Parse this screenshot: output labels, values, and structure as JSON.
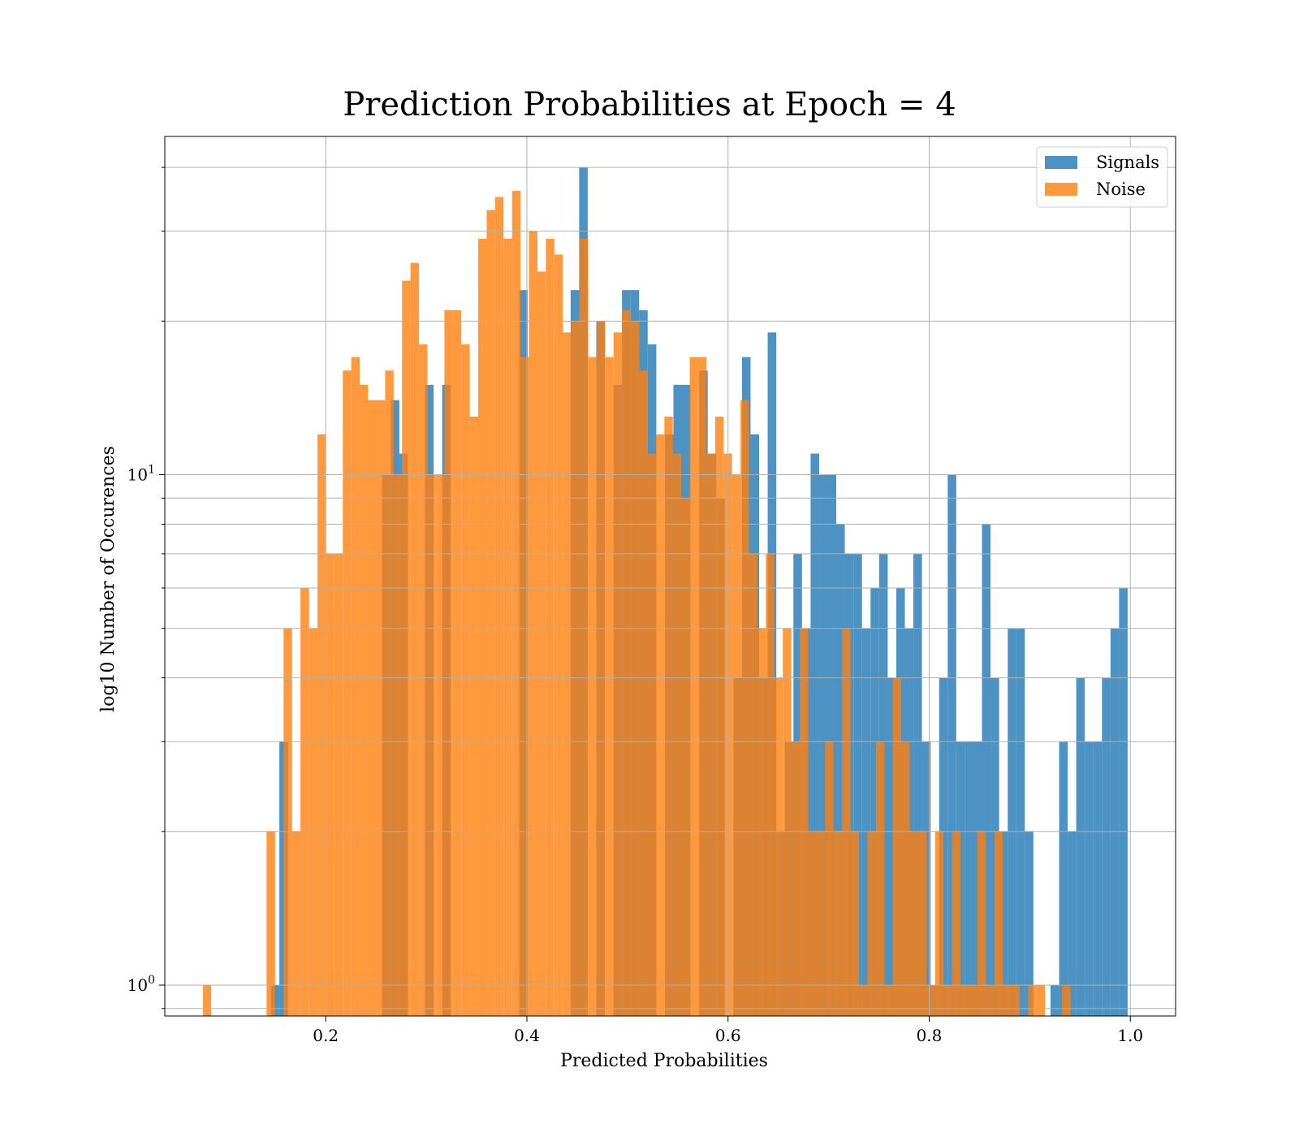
{
  "chart_data": {
    "type": "bar",
    "title": "Prediction Probabilities at Epoch = 4",
    "xlabel": "Predicted Probabilities",
    "ylabel": "log10 Number of Occurences",
    "xlim": [
      0.04,
      1.045
    ],
    "ylim": [
      0.87,
      46
    ],
    "yscale": "log",
    "grid": true,
    "legend_position": "top-right",
    "x_ticks": [
      0.2,
      0.4,
      0.6,
      0.8,
      1.0
    ],
    "x_tick_labels": [
      "0.2",
      "0.4",
      "0.6",
      "0.8",
      "1.0"
    ],
    "y_major_ticks": [
      {
        "value": 1,
        "base": "10",
        "exp": "0"
      },
      {
        "value": 10,
        "base": "10",
        "exp": "1"
      }
    ],
    "y_minor_ticks": [
      0.9,
      2,
      3,
      4,
      5,
      6,
      7,
      8,
      9,
      20,
      30,
      40
    ],
    "series": [
      {
        "name": "Signals",
        "color": "#1f77b4",
        "opacity": 0.8,
        "bins": [
          [
            0.1455,
            0.1539,
            1
          ],
          [
            0.1539,
            0.1625,
            3
          ],
          [
            0.2561,
            0.2647,
            10
          ],
          [
            0.2647,
            0.2732,
            14
          ],
          [
            0.2732,
            0.2817,
            11
          ],
          [
            0.2987,
            0.3073,
            15
          ],
          [
            0.3158,
            0.3243,
            15
          ],
          [
            0.3924,
            0.4009,
            23
          ],
          [
            0.4435,
            0.452,
            23
          ],
          [
            0.452,
            0.4605,
            40
          ],
          [
            0.469,
            0.4776,
            20
          ],
          [
            0.4861,
            0.4946,
            15
          ],
          [
            0.4946,
            0.5031,
            23
          ],
          [
            0.5031,
            0.5116,
            23
          ],
          [
            0.5116,
            0.5201,
            21
          ],
          [
            0.5201,
            0.5287,
            18
          ],
          [
            0.5372,
            0.5457,
            12
          ],
          [
            0.5457,
            0.5542,
            15
          ],
          [
            0.5542,
            0.5627,
            15
          ],
          [
            0.5713,
            0.5798,
            16
          ],
          [
            0.5798,
            0.5883,
            11
          ],
          [
            0.5883,
            0.5968,
            9
          ],
          [
            0.6054,
            0.6139,
            4
          ],
          [
            0.6139,
            0.6224,
            17
          ],
          [
            0.6224,
            0.6309,
            12
          ],
          [
            0.6309,
            0.6394,
            4
          ],
          [
            0.6394,
            0.648,
            19
          ],
          [
            0.648,
            0.6565,
            2
          ],
          [
            0.6565,
            0.665,
            3
          ],
          [
            0.665,
            0.6735,
            7
          ],
          [
            0.6735,
            0.6821,
            5
          ],
          [
            0.6821,
            0.6906,
            11
          ],
          [
            0.6906,
            0.6991,
            10
          ],
          [
            0.6991,
            0.7076,
            10
          ],
          [
            0.7076,
            0.7161,
            8
          ],
          [
            0.7161,
            0.7247,
            7
          ],
          [
            0.7247,
            0.7332,
            7
          ],
          [
            0.7332,
            0.7417,
            5
          ],
          [
            0.7417,
            0.7502,
            6
          ],
          [
            0.7502,
            0.7588,
            7
          ],
          [
            0.7588,
            0.7673,
            4
          ],
          [
            0.7673,
            0.7758,
            6
          ],
          [
            0.7758,
            0.7843,
            5
          ],
          [
            0.7843,
            0.7928,
            7
          ],
          [
            0.7928,
            0.8014,
            3
          ],
          [
            0.8014,
            0.8099,
            1
          ],
          [
            0.8099,
            0.8184,
            4
          ],
          [
            0.8184,
            0.8269,
            10
          ],
          [
            0.8269,
            0.8354,
            3
          ],
          [
            0.8354,
            0.844,
            3
          ],
          [
            0.844,
            0.8525,
            3
          ],
          [
            0.8525,
            0.861,
            8
          ],
          [
            0.861,
            0.8695,
            4
          ],
          [
            0.8695,
            0.8781,
            2
          ],
          [
            0.8781,
            0.8866,
            5
          ],
          [
            0.8866,
            0.8951,
            5
          ],
          [
            0.8951,
            0.9036,
            2
          ],
          [
            0.9206,
            0.9292,
            1
          ],
          [
            0.9292,
            0.9377,
            3
          ],
          [
            0.9377,
            0.9462,
            2
          ],
          [
            0.9462,
            0.9547,
            4
          ],
          [
            0.9547,
            0.9632,
            3
          ],
          [
            0.9632,
            0.9718,
            3
          ],
          [
            0.9718,
            0.9803,
            4
          ],
          [
            0.9803,
            0.9888,
            5
          ],
          [
            0.9888,
            0.9973,
            6
          ]
        ]
      },
      {
        "name": "Noise",
        "color": "#ff7f0e",
        "opacity": 0.8,
        "bins": [
          [
            0.078,
            0.086,
            1
          ],
          [
            0.1412,
            0.1496,
            2
          ],
          [
            0.1581,
            0.1665,
            5
          ],
          [
            0.1665,
            0.1749,
            2
          ],
          [
            0.1749,
            0.1834,
            6
          ],
          [
            0.1834,
            0.1918,
            5
          ],
          [
            0.1918,
            0.2002,
            12
          ],
          [
            0.2002,
            0.2086,
            7
          ],
          [
            0.2086,
            0.217,
            7
          ],
          [
            0.217,
            0.2254,
            16
          ],
          [
            0.2254,
            0.2338,
            17
          ],
          [
            0.2338,
            0.2422,
            15
          ],
          [
            0.2422,
            0.2507,
            14
          ],
          [
            0.2507,
            0.2591,
            14
          ],
          [
            0.2591,
            0.2675,
            16
          ],
          [
            0.2675,
            0.2759,
            10
          ],
          [
            0.2759,
            0.2843,
            24
          ],
          [
            0.2843,
            0.2927,
            26
          ],
          [
            0.2927,
            0.3011,
            18
          ],
          [
            0.3011,
            0.3095,
            10
          ],
          [
            0.3095,
            0.318,
            10
          ],
          [
            0.318,
            0.3264,
            21
          ],
          [
            0.3264,
            0.3348,
            21
          ],
          [
            0.3348,
            0.3432,
            18
          ],
          [
            0.3432,
            0.3516,
            13
          ],
          [
            0.3516,
            0.36,
            29
          ],
          [
            0.36,
            0.3684,
            33
          ],
          [
            0.3684,
            0.3768,
            35
          ],
          [
            0.3768,
            0.3853,
            29
          ],
          [
            0.3853,
            0.3937,
            36
          ],
          [
            0.3937,
            0.4021,
            17
          ],
          [
            0.4021,
            0.4105,
            30
          ],
          [
            0.4105,
            0.4189,
            25
          ],
          [
            0.4189,
            0.4273,
            29
          ],
          [
            0.4273,
            0.4357,
            27
          ],
          [
            0.4357,
            0.4441,
            19
          ],
          [
            0.4441,
            0.4526,
            20
          ],
          [
            0.4526,
            0.461,
            29
          ],
          [
            0.461,
            0.4694,
            17
          ],
          [
            0.4694,
            0.4778,
            20
          ],
          [
            0.4778,
            0.4862,
            17
          ],
          [
            0.4862,
            0.4946,
            19
          ],
          [
            0.4946,
            0.503,
            21
          ],
          [
            0.503,
            0.5114,
            20
          ],
          [
            0.5114,
            0.5199,
            16
          ],
          [
            0.5199,
            0.5283,
            11
          ],
          [
            0.5283,
            0.5367,
            12
          ],
          [
            0.5367,
            0.5451,
            13
          ],
          [
            0.5451,
            0.5535,
            11
          ],
          [
            0.5535,
            0.5619,
            9
          ],
          [
            0.5619,
            0.5703,
            17
          ],
          [
            0.5703,
            0.5787,
            17
          ],
          [
            0.5787,
            0.5872,
            11
          ],
          [
            0.5872,
            0.5956,
            13
          ],
          [
            0.5956,
            0.604,
            11
          ],
          [
            0.604,
            0.6124,
            10
          ],
          [
            0.6124,
            0.6208,
            14
          ],
          [
            0.6208,
            0.6292,
            7
          ],
          [
            0.6292,
            0.6376,
            5
          ],
          [
            0.6376,
            0.646,
            7
          ],
          [
            0.646,
            0.6545,
            4
          ],
          [
            0.6545,
            0.6629,
            5
          ],
          [
            0.6629,
            0.6713,
            3
          ],
          [
            0.6713,
            0.6797,
            5
          ],
          [
            0.6797,
            0.6881,
            2
          ],
          [
            0.6881,
            0.6965,
            2
          ],
          [
            0.6965,
            0.7049,
            3
          ],
          [
            0.7049,
            0.7133,
            2
          ],
          [
            0.7133,
            0.7218,
            5
          ],
          [
            0.7218,
            0.7302,
            2
          ],
          [
            0.7302,
            0.7386,
            1
          ],
          [
            0.7386,
            0.747,
            2
          ],
          [
            0.747,
            0.7554,
            3
          ],
          [
            0.7554,
            0.7638,
            1
          ],
          [
            0.7638,
            0.7722,
            4
          ],
          [
            0.7722,
            0.7806,
            3
          ],
          [
            0.7806,
            0.7891,
            2
          ],
          [
            0.7891,
            0.7975,
            2
          ],
          [
            0.7975,
            0.8059,
            1
          ],
          [
            0.8059,
            0.8143,
            2
          ],
          [
            0.8143,
            0.8227,
            1
          ],
          [
            0.8227,
            0.8311,
            2
          ],
          [
            0.8311,
            0.8395,
            1
          ],
          [
            0.8395,
            0.8479,
            1
          ],
          [
            0.8479,
            0.8564,
            2
          ],
          [
            0.8564,
            0.8648,
            1
          ],
          [
            0.8648,
            0.8732,
            2
          ],
          [
            0.8732,
            0.8816,
            1
          ],
          [
            0.8816,
            0.89,
            1
          ],
          [
            0.8984,
            0.9068,
            1
          ],
          [
            0.9068,
            0.9152,
            1
          ],
          [
            0.9321,
            0.9405,
            1
          ]
        ]
      }
    ]
  }
}
